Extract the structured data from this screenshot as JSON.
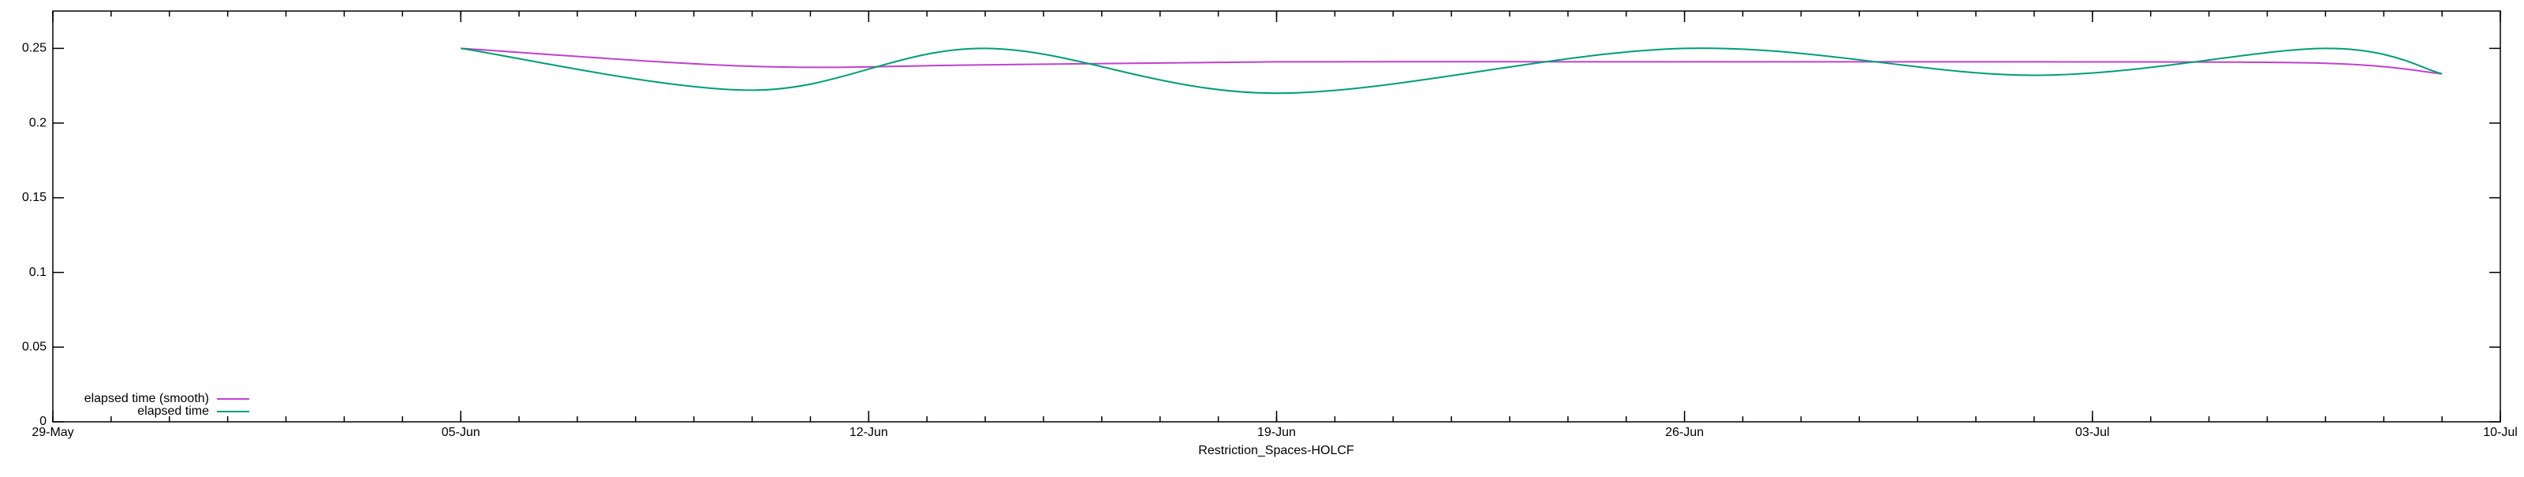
{
  "chart_data": {
    "type": "line",
    "xlabel": "Restriction_Spaces-HOLCF",
    "x": [
      "05-Jun",
      "10-Jun",
      "14-Jun",
      "19-Jun",
      "26-Jun",
      "02-Jul",
      "07-Jul",
      "09-Jul"
    ],
    "series": [
      {
        "name": "elapsed time (smooth)",
        "color": "#c040d0",
        "values": [
          0.25,
          0.238,
          0.239,
          0.241,
          0.241,
          0.241,
          0.24,
          0.233
        ]
      },
      {
        "name": "elapsed time",
        "color": "#009e73",
        "values": [
          0.25,
          0.222,
          0.25,
          0.22,
          0.25,
          0.232,
          0.25,
          0.233
        ]
      }
    ],
    "xlim": [
      "29-May",
      "10-Jul"
    ],
    "xticks": [
      "29-May",
      "05-Jun",
      "12-Jun",
      "19-Jun",
      "26-Jun",
      "03-Jul",
      "10-Jul"
    ],
    "ylim": [
      0,
      0.275
    ],
    "yticks": [
      0,
      0.05,
      0.1,
      0.15,
      0.2,
      0.25
    ],
    "legend": "lower left"
  }
}
